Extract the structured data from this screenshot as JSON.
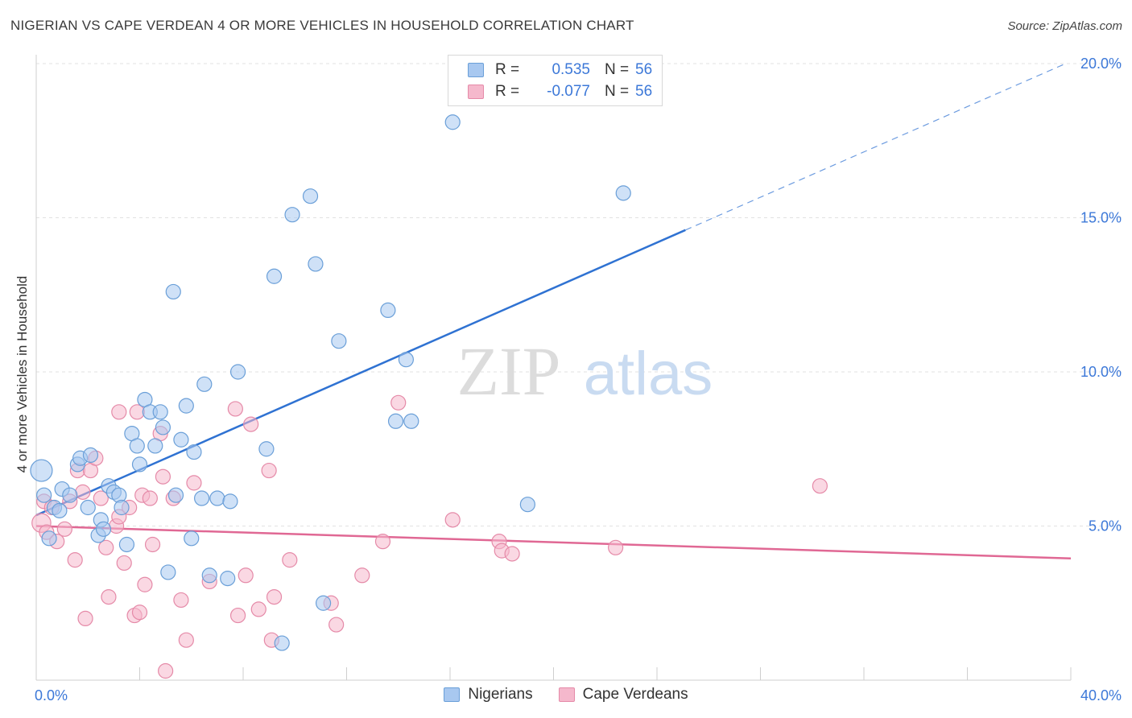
{
  "title": "NIGERIAN VS CAPE VERDEAN 4 OR MORE VEHICLES IN HOUSEHOLD CORRELATION CHART",
  "source": "Source: ZipAtlas.com",
  "watermark": {
    "zip": "ZIP",
    "atlas": "atlas"
  },
  "legend": {
    "nigerians": {
      "r_label": "R =",
      "r_value": "0.535",
      "n_label": "N =",
      "n_value": "56"
    },
    "cape_verdeans": {
      "r_label": "R =",
      "r_value": "-0.077",
      "n_label": "N =",
      "n_value": "56"
    }
  },
  "bottom_legend": {
    "nigerians": "Nigerians",
    "cape_verdeans": "Cape Verdeans"
  },
  "colors": {
    "blue_fill": "#a8c8f0",
    "blue_stroke": "#6a9fd8",
    "blue_line": "#2f72d2",
    "pink_fill": "#f5b8cc",
    "pink_stroke": "#e58aa8",
    "pink_line": "#e06894",
    "axis_label": "#3c78d8",
    "grid": "#e2e2e2"
  },
  "chart_data": {
    "type": "scatter",
    "title": "NIGERIAN VS CAPE VERDEAN 4 OR MORE VEHICLES IN HOUSEHOLD CORRELATION CHART",
    "xlabel": "",
    "ylabel": "4 or more Vehicles in Household",
    "xlim": [
      0,
      40
    ],
    "ylim": [
      0,
      20
    ],
    "x_tick_labels": [
      "0.0%",
      "40.0%"
    ],
    "y_tick_labels": [
      "5.0%",
      "10.0%",
      "15.0%",
      "20.0%"
    ],
    "y_ticks": [
      5,
      10,
      15,
      20
    ],
    "series": [
      {
        "name": "Nigerians",
        "r": 0.535,
        "n": 56,
        "trend": {
          "x0": 0,
          "y0": 5.35,
          "x1": 25.1,
          "y1": 14.6,
          "dash_x1": 39.8,
          "dash_y1": 20.0
        },
        "points": [
          [
            0.2,
            6.8,
            1.5
          ],
          [
            0.3,
            6.0,
            1.0
          ],
          [
            0.5,
            4.6,
            1.0
          ],
          [
            0.7,
            5.6,
            1.0
          ],
          [
            0.9,
            5.5,
            1.0
          ],
          [
            1.0,
            6.2,
            1.0
          ],
          [
            1.3,
            6.0,
            1.0
          ],
          [
            1.6,
            7.0,
            1.0
          ],
          [
            1.7,
            7.2,
            1.0
          ],
          [
            2.0,
            5.6,
            1.0
          ],
          [
            2.1,
            7.3,
            1.0
          ],
          [
            2.4,
            4.7,
            1.0
          ],
          [
            2.5,
            5.2,
            1.0
          ],
          [
            2.6,
            4.9,
            1.0
          ],
          [
            2.8,
            6.3,
            1.0
          ],
          [
            3.0,
            6.1,
            1.0
          ],
          [
            3.2,
            6.0,
            1.0
          ],
          [
            3.3,
            5.6,
            1.0
          ],
          [
            3.5,
            4.4,
            1.0
          ],
          [
            3.7,
            8.0,
            1.0
          ],
          [
            3.9,
            7.6,
            1.0
          ],
          [
            4.0,
            7.0,
            1.0
          ],
          [
            4.2,
            9.1,
            1.0
          ],
          [
            4.4,
            8.7,
            1.0
          ],
          [
            4.6,
            7.6,
            1.0
          ],
          [
            4.8,
            8.7,
            1.0
          ],
          [
            4.9,
            8.2,
            1.0
          ],
          [
            5.1,
            3.5,
            1.0
          ],
          [
            5.3,
            12.6,
            1.0
          ],
          [
            5.4,
            6.0,
            1.0
          ],
          [
            5.6,
            7.8,
            1.0
          ],
          [
            5.8,
            8.9,
            1.0
          ],
          [
            6.0,
            4.6,
            1.0
          ],
          [
            6.1,
            7.4,
            1.0
          ],
          [
            6.4,
            5.9,
            1.0
          ],
          [
            6.5,
            9.6,
            1.0
          ],
          [
            6.7,
            3.4,
            1.0
          ],
          [
            7.0,
            5.9,
            1.0
          ],
          [
            7.4,
            3.3,
            1.0
          ],
          [
            7.5,
            5.8,
            1.0
          ],
          [
            7.8,
            10.0,
            1.0
          ],
          [
            8.9,
            7.5,
            1.0
          ],
          [
            9.2,
            13.1,
            1.0
          ],
          [
            9.5,
            1.2,
            1.0
          ],
          [
            9.9,
            15.1,
            1.0
          ],
          [
            10.6,
            15.7,
            1.0
          ],
          [
            10.8,
            13.5,
            1.0
          ],
          [
            11.1,
            2.5,
            1.0
          ],
          [
            11.7,
            11.0,
            1.0
          ],
          [
            14.3,
            10.4,
            1.0
          ],
          [
            13.6,
            12.0,
            1.0
          ],
          [
            14.5,
            8.4,
            1.0
          ],
          [
            16.1,
            18.1,
            1.0
          ],
          [
            19.0,
            5.7,
            1.0
          ],
          [
            22.7,
            15.8,
            1.0
          ],
          [
            13.9,
            8.4,
            1.0
          ]
        ]
      },
      {
        "name": "Cape Verdeans",
        "r": -0.077,
        "n": 56,
        "trend": {
          "x0": 0,
          "y0": 5.0,
          "x1": 40,
          "y1": 3.95
        },
        "points": [
          [
            0.2,
            5.1,
            1.3
          ],
          [
            0.3,
            5.8,
            1.0
          ],
          [
            0.4,
            4.8,
            1.0
          ],
          [
            0.6,
            5.6,
            1.0
          ],
          [
            0.8,
            4.5,
            1.0
          ],
          [
            1.1,
            4.9,
            1.0
          ],
          [
            1.3,
            5.8,
            1.0
          ],
          [
            1.5,
            3.9,
            1.0
          ],
          [
            1.6,
            6.8,
            1.0
          ],
          [
            1.8,
            6.1,
            1.0
          ],
          [
            1.9,
            2.0,
            1.0
          ],
          [
            2.1,
            6.8,
            1.0
          ],
          [
            2.3,
            7.2,
            1.0
          ],
          [
            2.5,
            5.9,
            1.0
          ],
          [
            2.7,
            4.3,
            1.0
          ],
          [
            2.8,
            2.7,
            1.0
          ],
          [
            3.1,
            5.0,
            1.0
          ],
          [
            3.2,
            5.3,
            1.0
          ],
          [
            3.2,
            8.7,
            1.0
          ],
          [
            3.6,
            5.6,
            1.0
          ],
          [
            3.8,
            2.1,
            1.0
          ],
          [
            3.9,
            8.7,
            1.0
          ],
          [
            4.1,
            6.0,
            1.0
          ],
          [
            4.2,
            3.1,
            1.0
          ],
          [
            4.4,
            5.9,
            1.0
          ],
          [
            4.5,
            4.4,
            1.0
          ],
          [
            4.8,
            8.0,
            1.0
          ],
          [
            4.9,
            6.6,
            1.0
          ],
          [
            5.0,
            0.3,
            1.0
          ],
          [
            5.3,
            5.9,
            1.0
          ],
          [
            5.6,
            2.6,
            1.0
          ],
          [
            5.8,
            1.3,
            1.0
          ],
          [
            6.1,
            6.4,
            1.0
          ],
          [
            6.7,
            3.2,
            1.0
          ],
          [
            7.7,
            8.8,
            1.0
          ],
          [
            7.8,
            2.1,
            1.0
          ],
          [
            8.1,
            3.4,
            1.0
          ],
          [
            8.3,
            8.3,
            1.0
          ],
          [
            8.6,
            2.3,
            1.0
          ],
          [
            9.0,
            6.8,
            1.0
          ],
          [
            9.2,
            2.7,
            1.0
          ],
          [
            9.1,
            1.3,
            1.0
          ],
          [
            9.8,
            3.9,
            1.0
          ],
          [
            11.4,
            2.5,
            1.0
          ],
          [
            11.6,
            1.8,
            1.0
          ],
          [
            12.6,
            3.4,
            1.0
          ],
          [
            13.4,
            4.5,
            1.0
          ],
          [
            14.0,
            9.0,
            1.0
          ],
          [
            16.1,
            5.2,
            1.0
          ],
          [
            17.9,
            4.5,
            1.0
          ],
          [
            18.0,
            4.2,
            1.0
          ],
          [
            18.4,
            4.1,
            1.0
          ],
          [
            22.4,
            4.3,
            1.0
          ],
          [
            30.3,
            6.3,
            1.0
          ],
          [
            3.4,
            3.8,
            1.0
          ],
          [
            4.0,
            2.2,
            1.0
          ]
        ]
      }
    ]
  }
}
